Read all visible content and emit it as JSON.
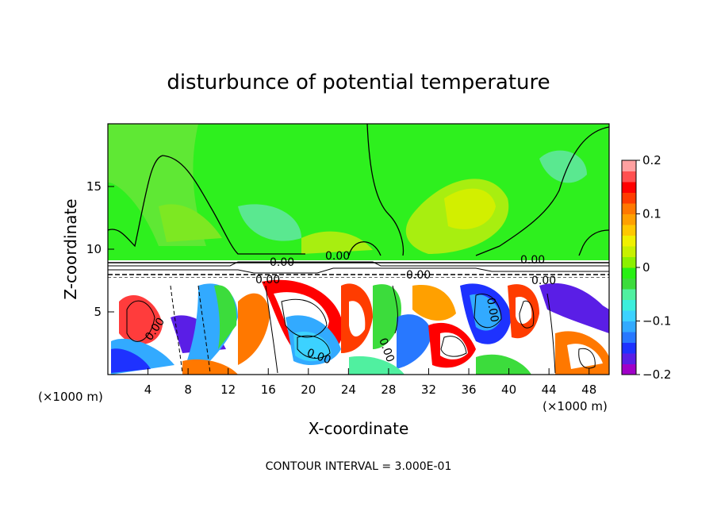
{
  "chart_data": {
    "type": "heatmap",
    "title": "disturbunce of potential temperature",
    "xlabel": "X-coordinate",
    "ylabel": "Z-coordinate",
    "x_unit": "(×1000 m)",
    "x_unit_right": "(×1000 m)",
    "xlim": [
      0,
      50
    ],
    "ylim": [
      0,
      20
    ],
    "x_ticks": [
      4,
      8,
      12,
      16,
      20,
      24,
      28,
      32,
      36,
      40,
      44,
      48
    ],
    "y_ticks": [
      5,
      10,
      15
    ],
    "colorbar": {
      "min": -0.2,
      "max": 0.2,
      "ticks": [
        0.2,
        0.1,
        0,
        -0.1,
        -0.2
      ],
      "tick_labels": [
        "0.2",
        "0.1",
        "0",
        "−0.1",
        "−0.2"
      ],
      "colors": [
        "#a000c8",
        "#5a1ee6",
        "#1e32ff",
        "#2878ff",
        "#32aaff",
        "#3cd2ff",
        "#3ceedc",
        "#50f0a0",
        "#3cdc3c",
        "#28f014",
        "#8cf000",
        "#c8f000",
        "#f0f000",
        "#ffc800",
        "#ffa000",
        "#ff7800",
        "#ff3c00",
        "#ff0000",
        "#ff5050",
        "#ffa0a0"
      ]
    },
    "contour_interval_text": "CONTOUR INTERVAL = 3.000E-01",
    "contour_labels": [
      "0.00",
      "0.00",
      "0.00",
      "0.00",
      "0.00",
      "0.00",
      "0.00",
      "0.00",
      "0.00",
      "0.00"
    ]
  }
}
